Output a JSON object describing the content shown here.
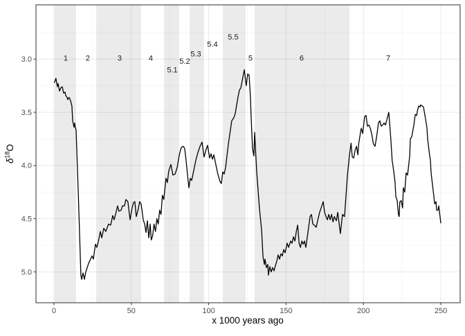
{
  "chart_data": {
    "type": "line",
    "title": "",
    "xlabel": "x 1000 years ago",
    "ylabel": {
      "base": "δ",
      "sup": "18",
      "end": "O"
    },
    "x_axis": {
      "domain": [
        -11.6,
        262.5
      ],
      "ticks": [
        0,
        50,
        100,
        150,
        200,
        250
      ],
      "tick_labels": [
        "0",
        "50",
        "100",
        "150",
        "200",
        "250"
      ],
      "minor_ticks": [
        25,
        75,
        125,
        175,
        225
      ],
      "grid": true
    },
    "y_axis": {
      "domain": [
        2.49,
        5.29
      ],
      "reversed": true,
      "ticks": [
        3.0,
        3.5,
        4.0,
        4.5,
        5.0
      ],
      "tick_labels": [
        "3.0",
        "3.5",
        "4.0",
        "4.5",
        "5.0"
      ],
      "minor_ticks": [
        2.75,
        3.25,
        3.75,
        4.25,
        4.75,
        5.25
      ],
      "grid": true
    },
    "bands": [
      {
        "name": "mis-1",
        "from": 0.4,
        "to": 14.3
      },
      {
        "name": "mis-3",
        "from": 27.3,
        "to": 56.3
      },
      {
        "name": "mis-5.1",
        "from": 71.1,
        "to": 80.9
      },
      {
        "name": "mis-5.3",
        "from": 87.7,
        "to": 97.0
      },
      {
        "name": "mis-5.5",
        "from": 109.1,
        "to": 123.9
      },
      {
        "name": "mis-6",
        "from": 129.7,
        "to": 191.0
      }
    ],
    "stage_labels": [
      {
        "text": "1",
        "x": 7.6,
        "y": 2.99
      },
      {
        "text": "2",
        "x": 21.9,
        "y": 2.99
      },
      {
        "text": "3",
        "x": 42.5,
        "y": 2.99
      },
      {
        "text": "4",
        "x": 62.6,
        "y": 2.99
      },
      {
        "text": "5.1",
        "x": 76.5,
        "y": 3.1
      },
      {
        "text": "5.2",
        "x": 84.5,
        "y": 3.02
      },
      {
        "text": "5.3",
        "x": 91.7,
        "y": 2.95
      },
      {
        "text": "5.4",
        "x": 102.4,
        "y": 2.86
      },
      {
        "text": "5.5",
        "x": 115.8,
        "y": 2.79
      },
      {
        "text": "5",
        "x": 127.0,
        "y": 2.99
      },
      {
        "text": "6",
        "x": 160.1,
        "y": 2.99
      },
      {
        "text": "7",
        "x": 216.0,
        "y": 2.99
      }
    ],
    "series": [
      {
        "name": "d18O",
        "color": "#000000",
        "points": [
          [
            0.4,
            3.22
          ],
          [
            1.3,
            3.18
          ],
          [
            2.2,
            3.26
          ],
          [
            2.7,
            3.23
          ],
          [
            3.6,
            3.3
          ],
          [
            4.5,
            3.27
          ],
          [
            5.4,
            3.26
          ],
          [
            6.3,
            3.32
          ],
          [
            7.2,
            3.31
          ],
          [
            7.6,
            3.34
          ],
          [
            8.5,
            3.36
          ],
          [
            8.9,
            3.38
          ],
          [
            9.8,
            3.36
          ],
          [
            10.7,
            3.39
          ],
          [
            11.6,
            3.44
          ],
          [
            12.1,
            3.58
          ],
          [
            13.0,
            3.64
          ],
          [
            13.4,
            3.6
          ],
          [
            13.9,
            3.65
          ],
          [
            14.3,
            3.66
          ],
          [
            15.7,
            4.25
          ],
          [
            17.0,
            4.85
          ],
          [
            17.4,
            5.03
          ],
          [
            17.9,
            5.07
          ],
          [
            18.8,
            5.01
          ],
          [
            19.7,
            5.07
          ],
          [
            20.6,
            5.0
          ],
          [
            21.5,
            4.96
          ],
          [
            22.4,
            4.92
          ],
          [
            23.7,
            4.88
          ],
          [
            24.6,
            4.85
          ],
          [
            25.5,
            4.88
          ],
          [
            26.8,
            4.74
          ],
          [
            27.7,
            4.77
          ],
          [
            28.6,
            4.72
          ],
          [
            30.0,
            4.62
          ],
          [
            30.9,
            4.68
          ],
          [
            32.2,
            4.59
          ],
          [
            33.5,
            4.62
          ],
          [
            35.3,
            4.55
          ],
          [
            36.7,
            4.56
          ],
          [
            38.0,
            4.47
          ],
          [
            38.9,
            4.51
          ],
          [
            39.8,
            4.46
          ],
          [
            41.1,
            4.38
          ],
          [
            42.0,
            4.43
          ],
          [
            43.4,
            4.42
          ],
          [
            44.3,
            4.38
          ],
          [
            45.6,
            4.38
          ],
          [
            46.5,
            4.32
          ],
          [
            47.8,
            4.34
          ],
          [
            49.2,
            4.51
          ],
          [
            50.5,
            4.4
          ],
          [
            51.4,
            4.35
          ],
          [
            52.3,
            4.34
          ],
          [
            53.2,
            4.48
          ],
          [
            54.5,
            4.41
          ],
          [
            55.4,
            4.34
          ],
          [
            56.3,
            4.36
          ],
          [
            57.7,
            4.51
          ],
          [
            58.6,
            4.55
          ],
          [
            59.5,
            4.63
          ],
          [
            60.4,
            4.52
          ],
          [
            61.3,
            4.68
          ],
          [
            62.2,
            4.55
          ],
          [
            62.9,
            4.7
          ],
          [
            63.8,
            4.66
          ],
          [
            64.7,
            4.55
          ],
          [
            65.6,
            4.62
          ],
          [
            66.5,
            4.5
          ],
          [
            67.4,
            4.55
          ],
          [
            68.3,
            4.42
          ],
          [
            69.2,
            4.46
          ],
          [
            70.1,
            4.28
          ],
          [
            71.0,
            4.32
          ],
          [
            72.4,
            4.12
          ],
          [
            73.3,
            4.16
          ],
          [
            74.2,
            4.05
          ],
          [
            75.6,
            3.99
          ],
          [
            76.9,
            4.09
          ],
          [
            78.3,
            4.08
          ],
          [
            79.6,
            4.02
          ],
          [
            81.0,
            3.9
          ],
          [
            82.3,
            3.83
          ],
          [
            83.6,
            3.82
          ],
          [
            84.5,
            3.84
          ],
          [
            85.4,
            3.95
          ],
          [
            86.3,
            4.08
          ],
          [
            87.2,
            4.21
          ],
          [
            88.1,
            4.12
          ],
          [
            89.0,
            4.14
          ],
          [
            90.3,
            4.05
          ],
          [
            91.7,
            3.95
          ],
          [
            93.0,
            3.88
          ],
          [
            94.4,
            3.82
          ],
          [
            95.7,
            3.78
          ],
          [
            97.0,
            3.92
          ],
          [
            98.3,
            3.85
          ],
          [
            99.3,
            3.81
          ],
          [
            100.6,
            3.93
          ],
          [
            101.5,
            3.89
          ],
          [
            102.4,
            3.94
          ],
          [
            103.3,
            3.9
          ],
          [
            104.6,
            3.99
          ],
          [
            105.9,
            4.08
          ],
          [
            107.3,
            4.15
          ],
          [
            108.2,
            4.17
          ],
          [
            109.1,
            4.06
          ],
          [
            110.0,
            4.08
          ],
          [
            110.9,
            4.02
          ],
          [
            112.7,
            3.8
          ],
          [
            114.9,
            3.58
          ],
          [
            116.3,
            3.55
          ],
          [
            117.2,
            3.51
          ],
          [
            119.0,
            3.35
          ],
          [
            119.9,
            3.29
          ],
          [
            120.8,
            3.27
          ],
          [
            121.7,
            3.2
          ],
          [
            123.0,
            3.1
          ],
          [
            124.3,
            3.25
          ],
          [
            125.2,
            3.14
          ],
          [
            126.1,
            3.15
          ],
          [
            127.0,
            3.37
          ],
          [
            127.4,
            3.54
          ],
          [
            128.3,
            3.84
          ],
          [
            129.2,
            3.91
          ],
          [
            129.7,
            3.69
          ],
          [
            131.0,
            4.05
          ],
          [
            132.8,
            4.4
          ],
          [
            134.2,
            4.61
          ],
          [
            135.1,
            4.86
          ],
          [
            136.0,
            4.93
          ],
          [
            136.4,
            4.88
          ],
          [
            137.3,
            4.96
          ],
          [
            138.2,
            4.93
          ],
          [
            138.6,
            5.03
          ],
          [
            139.5,
            4.95
          ],
          [
            140.4,
            5.0
          ],
          [
            141.3,
            4.96
          ],
          [
            142.2,
            4.99
          ],
          [
            143.1,
            4.94
          ],
          [
            144.0,
            4.9
          ],
          [
            144.9,
            4.84
          ],
          [
            145.8,
            4.88
          ],
          [
            146.7,
            4.83
          ],
          [
            147.6,
            4.85
          ],
          [
            148.5,
            4.79
          ],
          [
            149.4,
            4.82
          ],
          [
            150.7,
            4.73
          ],
          [
            151.6,
            4.77
          ],
          [
            153.0,
            4.71
          ],
          [
            153.9,
            4.73
          ],
          [
            154.8,
            4.67
          ],
          [
            155.7,
            4.71
          ],
          [
            156.6,
            4.62
          ],
          [
            157.5,
            4.56
          ],
          [
            158.4,
            4.73
          ],
          [
            159.3,
            4.77
          ],
          [
            160.2,
            4.71
          ],
          [
            161.1,
            4.74
          ],
          [
            161.9,
            4.71
          ],
          [
            162.8,
            4.77
          ],
          [
            164.2,
            4.62
          ],
          [
            165.5,
            4.48
          ],
          [
            166.4,
            4.46
          ],
          [
            167.3,
            4.55
          ],
          [
            168.2,
            4.56
          ],
          [
            169.5,
            4.58
          ],
          [
            170.4,
            4.52
          ],
          [
            171.7,
            4.44
          ],
          [
            173.1,
            4.38
          ],
          [
            174.0,
            4.34
          ],
          [
            174.9,
            4.44
          ],
          [
            175.8,
            4.48
          ],
          [
            176.7,
            4.51
          ],
          [
            177.6,
            4.46
          ],
          [
            178.5,
            4.51
          ],
          [
            179.4,
            4.46
          ],
          [
            180.3,
            4.53
          ],
          [
            181.2,
            4.48
          ],
          [
            182.5,
            4.52
          ],
          [
            183.4,
            4.44
          ],
          [
            185.1,
            4.64
          ],
          [
            186.5,
            4.46
          ],
          [
            187.8,
            4.48
          ],
          [
            189.6,
            4.1
          ],
          [
            191.0,
            3.9
          ],
          [
            192.0,
            3.79
          ],
          [
            192.8,
            3.92
          ],
          [
            193.7,
            3.93
          ],
          [
            194.6,
            3.86
          ],
          [
            195.5,
            3.82
          ],
          [
            196.4,
            3.9
          ],
          [
            196.9,
            3.8
          ],
          [
            198.2,
            3.68
          ],
          [
            198.6,
            3.65
          ],
          [
            199.5,
            3.7
          ],
          [
            200.8,
            3.54
          ],
          [
            201.7,
            3.53
          ],
          [
            202.6,
            3.63
          ],
          [
            203.5,
            3.62
          ],
          [
            204.4,
            3.65
          ],
          [
            205.3,
            3.7
          ],
          [
            206.2,
            3.78
          ],
          [
            206.6,
            3.8
          ],
          [
            207.5,
            3.82
          ],
          [
            208.4,
            3.74
          ],
          [
            208.8,
            3.7
          ],
          [
            209.7,
            3.6
          ],
          [
            210.6,
            3.58
          ],
          [
            211.5,
            3.63
          ],
          [
            212.4,
            3.62
          ],
          [
            213.3,
            3.6
          ],
          [
            214.2,
            3.62
          ],
          [
            215.5,
            3.55
          ],
          [
            216.4,
            3.5
          ],
          [
            217.7,
            3.75
          ],
          [
            218.6,
            3.96
          ],
          [
            219.0,
            3.99
          ],
          [
            220.4,
            4.15
          ],
          [
            220.9,
            4.29
          ],
          [
            221.8,
            4.33
          ],
          [
            222.6,
            4.46
          ],
          [
            223.1,
            4.48
          ],
          [
            223.5,
            4.34
          ],
          [
            224.4,
            4.33
          ],
          [
            225.3,
            4.4
          ],
          [
            225.8,
            4.21
          ],
          [
            226.7,
            4.25
          ],
          [
            227.6,
            4.07
          ],
          [
            228.5,
            4.09
          ],
          [
            229.9,
            3.91
          ],
          [
            230.3,
            3.75
          ],
          [
            231.2,
            3.73
          ],
          [
            232.6,
            3.62
          ],
          [
            233.5,
            3.52
          ],
          [
            234.4,
            3.53
          ],
          [
            234.8,
            3.49
          ],
          [
            235.7,
            3.44
          ],
          [
            236.6,
            3.45
          ],
          [
            237.0,
            3.43
          ],
          [
            237.9,
            3.44
          ],
          [
            238.8,
            3.45
          ],
          [
            240.1,
            3.56
          ],
          [
            241.0,
            3.64
          ],
          [
            241.5,
            3.75
          ],
          [
            242.4,
            3.86
          ],
          [
            243.3,
            3.96
          ],
          [
            243.7,
            4.07
          ],
          [
            244.6,
            4.18
          ],
          [
            245.5,
            4.29
          ],
          [
            246.0,
            4.36
          ],
          [
            246.9,
            4.34
          ],
          [
            247.3,
            4.42
          ],
          [
            248.2,
            4.42
          ],
          [
            248.7,
            4.38
          ],
          [
            250.0,
            4.54
          ]
        ]
      }
    ],
    "colors": {
      "background": "#ffffff",
      "band": "#ebebeb",
      "grid_major": "rgba(0,0,0,0.085)",
      "grid_minor": "rgba(0,0,0,0.035)",
      "panel_border": "#404040",
      "tick": "#333333",
      "axis_text": "#4d4d4d",
      "axis_title": "#000000",
      "stage_label": "#1a1a1a",
      "line": "#000000"
    },
    "legend": {
      "visible": false
    }
  }
}
